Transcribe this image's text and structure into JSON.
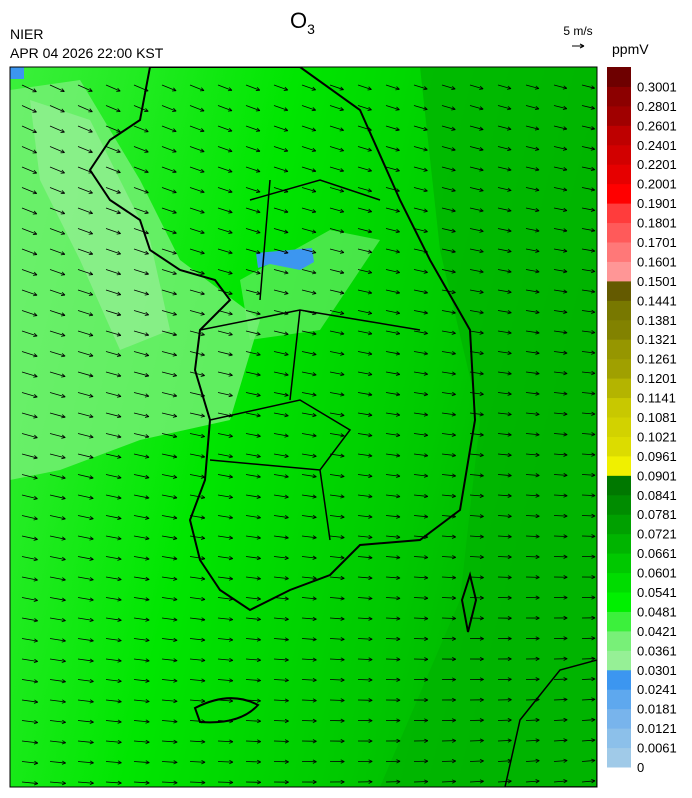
{
  "header": {
    "title": "O",
    "title_subscript": "3",
    "organization": "NIER",
    "datetime": "APR 04 2026 22:00 KST"
  },
  "wind_legend": {
    "label": "5 m/s"
  },
  "colorbar": {
    "unit": "ppmV",
    "levels": [
      {
        "label": "0",
        "color": "#a0cae8"
      },
      {
        "label": "0.0061",
        "color": "#8cc0ea"
      },
      {
        "label": "0.0121",
        "color": "#78b4ec"
      },
      {
        "label": "0.0181",
        "color": "#5ea8ee"
      },
      {
        "label": "0.0241",
        "color": "#3c96f0"
      },
      {
        "label": "0.0301",
        "color": "#96f096"
      },
      {
        "label": "0.0361",
        "color": "#78f078"
      },
      {
        "label": "0.0421",
        "color": "#3cf03c"
      },
      {
        "label": "0.0481",
        "color": "#00f000"
      },
      {
        "label": "0.0541",
        "color": "#00dc00"
      },
      {
        "label": "0.0601",
        "color": "#00c800"
      },
      {
        "label": "0.0661",
        "color": "#00b400"
      },
      {
        "label": "0.0721",
        "color": "#00a000"
      },
      {
        "label": "0.0781",
        "color": "#008c00"
      },
      {
        "label": "0.0841",
        "color": "#007800"
      },
      {
        "label": "0.0901",
        "color": "#f0f000"
      },
      {
        "label": "0.0961",
        "color": "#dcdc00"
      },
      {
        "label": "0.1021",
        "color": "#d2d200"
      },
      {
        "label": "0.1081",
        "color": "#c8c800"
      },
      {
        "label": "0.1141",
        "color": "#b4b400"
      },
      {
        "label": "0.1201",
        "color": "#a0a000"
      },
      {
        "label": "0.1261",
        "color": "#969600"
      },
      {
        "label": "0.1321",
        "color": "#828200"
      },
      {
        "label": "0.1381",
        "color": "#787800"
      },
      {
        "label": "0.1441",
        "color": "#645a00"
      },
      {
        "label": "0.1501",
        "color": "#ff9696"
      },
      {
        "label": "0.1601",
        "color": "#ff7878"
      },
      {
        "label": "0.1701",
        "color": "#ff5a5a"
      },
      {
        "label": "0.1801",
        "color": "#ff3c3c"
      },
      {
        "label": "0.1901",
        "color": "#ff0000"
      },
      {
        "label": "0.2001",
        "color": "#e60000"
      },
      {
        "label": "0.2201",
        "color": "#d20000"
      },
      {
        "label": "0.2401",
        "color": "#be0000"
      },
      {
        "label": "0.2601",
        "color": "#a00000"
      },
      {
        "label": "0.2801",
        "color": "#8c0000"
      },
      {
        "label": "0.3001",
        "color": "#6e0000"
      }
    ]
  }
}
